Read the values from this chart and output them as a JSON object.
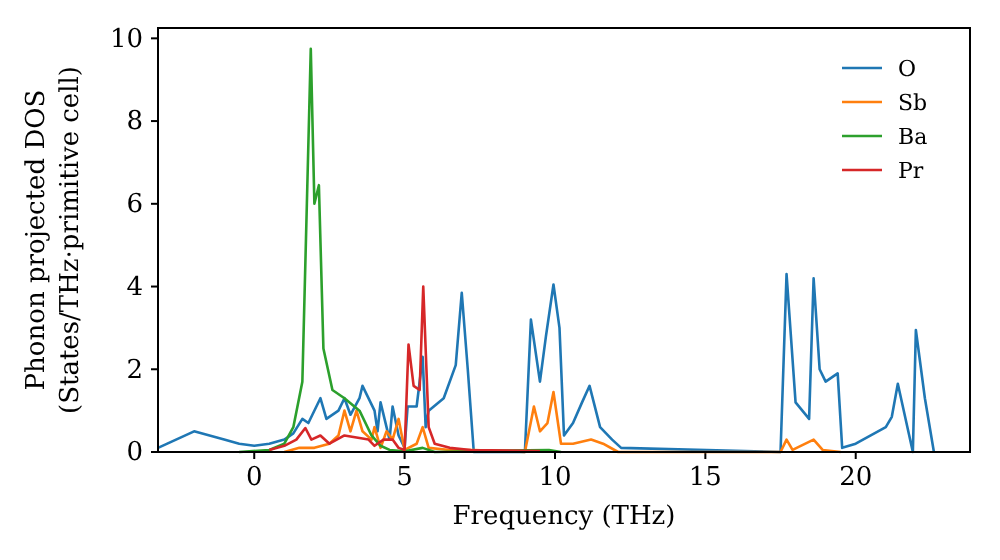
{
  "chart_data": {
    "type": "line",
    "xlabel": "Frequency (THz)",
    "ylabel": "Phonon projected DOS\n(States/THz·primitive cell)",
    "xlim": [
      -3.2,
      23.8
    ],
    "xticks": [
      0,
      5,
      10,
      15,
      20
    ],
    "ylim": [
      0,
      10.25
    ],
    "yticks": [
      0,
      2,
      4,
      6,
      8,
      10
    ],
    "grid": false,
    "legend": "top right",
    "marker": "none",
    "line_style": "solid",
    "series": [
      {
        "name": "O",
        "color": "#1f77b4",
        "x": [
          -3.2,
          -2,
          -1,
          -0.5,
          0,
          0.5,
          1.0,
          1.3,
          1.6,
          1.8,
          2.2,
          2.4,
          2.8,
          3.0,
          3.2,
          3.5,
          3.6,
          4.0,
          4.1,
          4.2,
          4.5,
          4.6,
          4.8,
          5.0,
          5.1,
          5.4,
          5.6,
          5.7,
          5.8,
          6.3,
          6.7,
          6.9,
          7.1,
          7.3,
          9.0,
          9.2,
          9.5,
          9.7,
          9.95,
          10.15,
          10.3,
          10.6,
          10.9,
          11.15,
          11.5,
          11.9,
          12.2,
          17.5,
          17.7,
          18.0,
          18.45,
          18.6,
          18.8,
          19.0,
          19.4,
          19.55,
          20.0,
          20.5,
          21.0,
          21.2,
          21.4,
          21.9,
          22.0,
          22.3,
          22.6
        ],
        "values": [
          0.1,
          0.5,
          0.3,
          0.2,
          0.15,
          0.2,
          0.3,
          0.45,
          0.8,
          0.7,
          1.3,
          0.8,
          1.0,
          1.3,
          0.9,
          1.3,
          1.6,
          1.0,
          0.5,
          1.2,
          0.3,
          1.1,
          0.4,
          0.1,
          1.1,
          1.1,
          2.3,
          0.6,
          1.0,
          1.3,
          2.1,
          3.85,
          2.0,
          0,
          0,
          3.2,
          1.7,
          2.8,
          4.05,
          3.0,
          0.4,
          0.7,
          1.2,
          1.6,
          0.6,
          0.3,
          0.1,
          0,
          4.3,
          1.2,
          0.8,
          4.2,
          2.0,
          1.7,
          1.9,
          0.1,
          0.2,
          0.4,
          0.6,
          0.85,
          1.65,
          0,
          2.95,
          1.3,
          0
        ]
      },
      {
        "name": "Sb",
        "color": "#ff7f0e",
        "x": [
          1.0,
          1.5,
          2.0,
          2.5,
          2.8,
          3.0,
          3.2,
          3.4,
          3.6,
          3.9,
          4.0,
          4.2,
          4.4,
          4.6,
          4.8,
          5.0,
          5.4,
          5.6,
          5.8,
          6.5,
          7.3,
          9.0,
          9.3,
          9.5,
          9.75,
          9.95,
          10.2,
          10.6,
          11.2,
          11.6,
          12.1,
          17.5,
          17.7,
          17.9,
          18.6,
          18.9,
          19.5
        ],
        "values": [
          0,
          0.1,
          0.1,
          0.2,
          0.4,
          1.0,
          0.5,
          1.0,
          0.5,
          0.3,
          0.6,
          0.1,
          0.5,
          0.3,
          0.8,
          0.05,
          0.2,
          0.6,
          0.1,
          0.05,
          0.05,
          0,
          1.1,
          0.5,
          0.7,
          1.45,
          0.2,
          0.2,
          0.3,
          0.2,
          0,
          0,
          0.3,
          0.05,
          0.3,
          0.05,
          0
        ]
      },
      {
        "name": "Ba",
        "color": "#2ca02c",
        "x": [
          -0.5,
          0.5,
          1.0,
          1.3,
          1.6,
          1.75,
          1.88,
          2.0,
          2.15,
          2.3,
          2.6,
          3.0,
          3.5,
          3.9,
          4.2,
          4.5,
          5.0,
          5.6,
          6.0,
          9.8,
          10.2
        ],
        "values": [
          0,
          0.05,
          0.2,
          0.6,
          1.7,
          6.0,
          9.75,
          6.0,
          6.45,
          2.5,
          1.5,
          1.3,
          1.0,
          0.4,
          0.15,
          0.05,
          0.02,
          0.1,
          0,
          0.05,
          0
        ]
      },
      {
        "name": "Pr",
        "color": "#d62728",
        "x": [
          0.5,
          1.0,
          1.4,
          1.7,
          1.9,
          2.2,
          2.5,
          3.0,
          3.4,
          3.8,
          4.0,
          4.3,
          4.6,
          4.8,
          5.0,
          5.13,
          5.3,
          5.5,
          5.62,
          5.8,
          6.0,
          6.5,
          7.2,
          9.5
        ],
        "values": [
          0.05,
          0.15,
          0.3,
          0.58,
          0.3,
          0.4,
          0.2,
          0.4,
          0.35,
          0.3,
          0.15,
          0.3,
          0.3,
          0.1,
          0.05,
          2.6,
          1.6,
          1.5,
          4.0,
          0.6,
          0.2,
          0.1,
          0.05,
          0.02
        ]
      }
    ]
  }
}
